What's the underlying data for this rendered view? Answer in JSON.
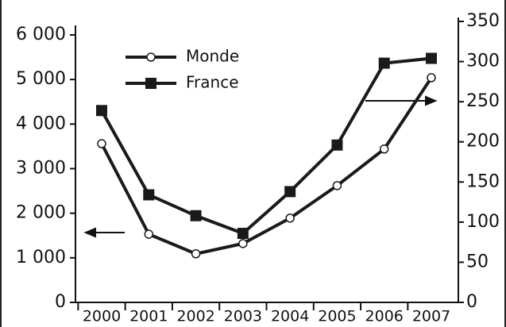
{
  "chart_data": {
    "type": "line",
    "categories": [
      "2000",
      "2001",
      "2002",
      "2003",
      "2004",
      "2005",
      "2006",
      "2007"
    ],
    "series": [
      {
        "name": "Monde",
        "color": "#1a1a1a",
        "marker": "circle",
        "values": [
          3560,
          1530,
          1090,
          1320,
          1890,
          2620,
          3440,
          5040
        ]
      },
      {
        "name": "France",
        "color": "#1a1a1a",
        "marker": "square",
        "axis": "y2",
        "values": [
          239,
          134,
          108,
          86,
          138,
          196,
          298,
          304
        ]
      }
    ],
    "ylim": [
      0,
      6000
    ],
    "yticks": [
      {
        "value": 0,
        "label": "0"
      },
      {
        "value": 1000,
        "label": "1 000"
      },
      {
        "value": 2000,
        "label": "2 000"
      },
      {
        "value": 3000,
        "label": "3 000"
      },
      {
        "value": 4000,
        "label": "4 000"
      },
      {
        "value": 5000,
        "label": "5 000"
      },
      {
        "value": 6000,
        "label": "6 000"
      }
    ],
    "y2lim": [
      0,
      350
    ],
    "y2ticks": [
      0,
      50,
      100,
      150,
      200,
      250,
      300,
      350
    ],
    "legend": "upper left"
  }
}
